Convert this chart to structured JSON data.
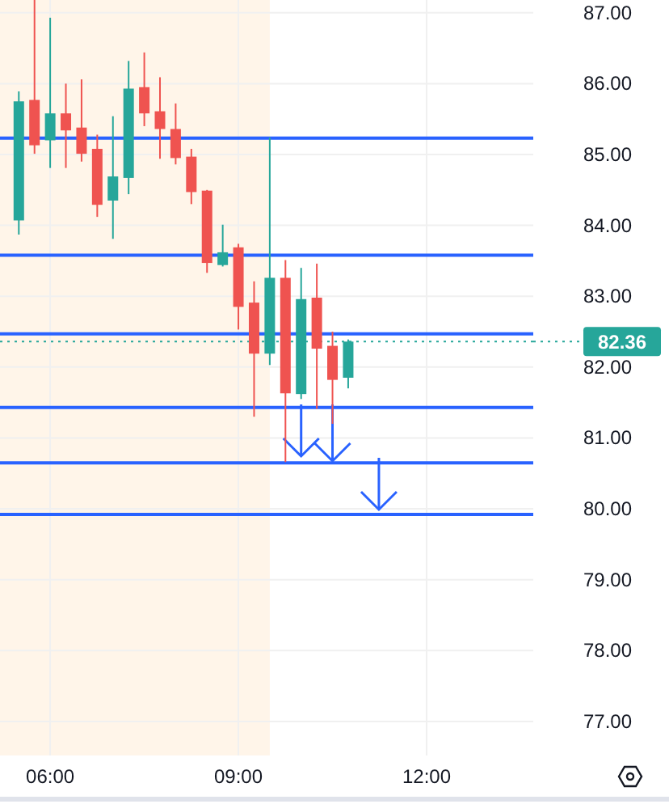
{
  "chart_data": {
    "type": "candlestick",
    "x": [
      5.5,
      5.75,
      6,
      6.25,
      6.5,
      6.75,
      7,
      7.25,
      7.5,
      7.75,
      8,
      8.25,
      8.5,
      8.75,
      9,
      9.25,
      9.5,
      9.75,
      10,
      10.25,
      10.5,
      10.75
    ],
    "ohlc": [
      [
        84.07,
        85.89,
        83.87,
        85.75
      ],
      [
        85.77,
        87.18,
        85.01,
        85.13
      ],
      [
        85.2,
        86.93,
        84.81,
        85.58
      ],
      [
        85.58,
        86.0,
        84.81,
        85.34
      ],
      [
        85.38,
        86.06,
        84.9,
        85.01
      ],
      [
        85.08,
        85.28,
        84.12,
        84.29
      ],
      [
        84.35,
        85.54,
        83.81,
        84.69
      ],
      [
        84.67,
        86.32,
        84.44,
        85.93
      ],
      [
        85.95,
        86.44,
        85.4,
        85.58
      ],
      [
        85.61,
        86.09,
        84.94,
        85.36
      ],
      [
        85.36,
        85.72,
        84.86,
        84.95
      ],
      [
        84.97,
        85.08,
        84.3,
        84.47
      ],
      [
        84.49,
        84.5,
        83.33,
        83.47
      ],
      [
        83.44,
        84.01,
        83.42,
        83.62
      ],
      [
        83.69,
        83.74,
        82.53,
        82.85
      ],
      [
        82.91,
        83.21,
        81.3,
        82.19
      ],
      [
        82.19,
        85.24,
        82.03,
        83.26
      ],
      [
        83.26,
        83.51,
        80.66,
        81.63
      ],
      [
        81.62,
        83.4,
        81.55,
        82.96
      ],
      [
        82.98,
        83.46,
        81.41,
        82.26
      ],
      [
        82.3,
        82.5,
        81.2,
        81.82
      ],
      [
        81.85,
        82.39,
        81.7,
        82.36
      ]
    ],
    "colors": [
      "#26a69a",
      "#ef5350",
      "#26a69a",
      "#ef5350",
      "#ef5350",
      "#ef5350",
      "#26a69a",
      "#26a69a",
      "#ef5350",
      "#ef5350",
      "#ef5350",
      "#ef5350",
      "#ef5350",
      "#26a69a",
      "#ef5350",
      "#ef5350",
      "#26a69a",
      "#ef5350",
      "#26a69a",
      "#ef5350",
      "#ef5350",
      "#26a69a"
    ],
    "xlim": [
      5.2,
      13.7
    ],
    "xticks": [
      {
        "value": 6,
        "label": "06:00"
      },
      {
        "value": 9,
        "label": "09:00"
      },
      {
        "value": 12,
        "label": "12:00"
      }
    ],
    "ylim": [
      76.52,
      87.18
    ],
    "yticks": [
      {
        "value": 77,
        "label": "77.00"
      },
      {
        "value": 78,
        "label": "78.00"
      },
      {
        "value": 79,
        "label": "79.00"
      },
      {
        "value": 80,
        "label": "80.00"
      },
      {
        "value": 81,
        "label": "81.00"
      },
      {
        "value": 82,
        "label": "82.00"
      },
      {
        "value": 83,
        "label": "83.00"
      },
      {
        "value": 84,
        "label": "84.00"
      },
      {
        "value": 85,
        "label": "85.00"
      },
      {
        "value": 86,
        "label": "86.00"
      },
      {
        "value": 87,
        "label": "87.00"
      }
    ],
    "grid": true,
    "bands": [
      {
        "axis": "x",
        "from": 5.2,
        "to": 9.5,
        "color": "#fff5e9"
      }
    ],
    "ref_lines": [
      {
        "axis": "y",
        "value": 85.23,
        "color": "#2962ff",
        "line_style": "solid"
      },
      {
        "axis": "y",
        "value": 83.58,
        "color": "#2962ff",
        "line_style": "solid"
      },
      {
        "axis": "y",
        "value": 82.47,
        "color": "#2962ff",
        "line_style": "solid"
      },
      {
        "axis": "y",
        "value": 81.43,
        "color": "#2962ff",
        "line_style": "solid"
      },
      {
        "axis": "y",
        "value": 80.65,
        "color": "#2962ff",
        "line_style": "solid"
      },
      {
        "axis": "y",
        "value": 79.92,
        "color": "#2962ff",
        "line_style": "solid"
      },
      {
        "axis": "y",
        "value": 82.36,
        "label": "82.36",
        "color": "#26a69a",
        "line_style": "dotted"
      }
    ]
  }
}
